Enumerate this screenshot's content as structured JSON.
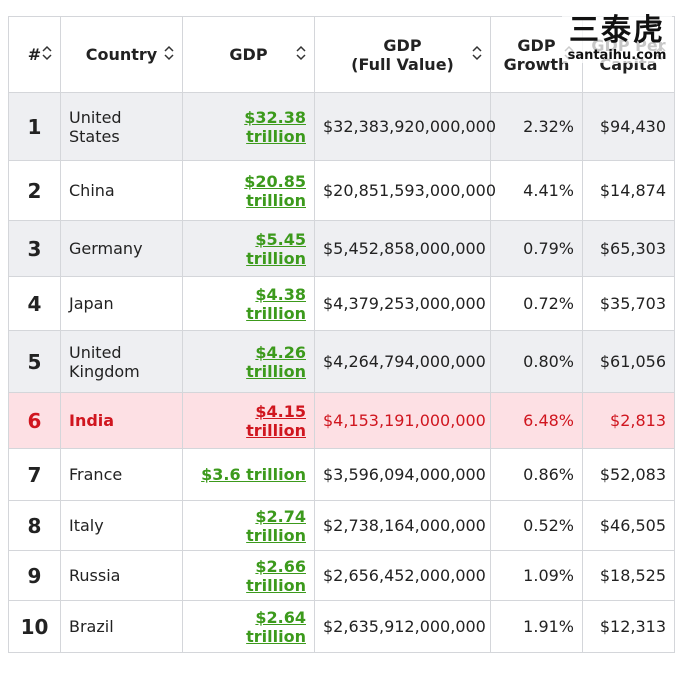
{
  "watermark": {
    "name": "三泰虎",
    "site": "santaihu.com"
  },
  "table": {
    "headers": [
      "#",
      "Country",
      "GDP",
      "GDP\n(Full Value)",
      "GDP\nGrowth",
      "GDP Per\nCapita"
    ],
    "rows": [
      [
        1,
        "United States",
        "$32.38 trillion",
        "$32,383,920,000,000",
        "2.32%",
        "$94,430"
      ],
      [
        2,
        "China",
        "$20.85 trillion",
        "$20,851,593,000,000",
        "4.41%",
        "$14,874"
      ],
      [
        3,
        "Germany",
        "$5.45 trillion",
        "$5,452,858,000,000",
        "0.79%",
        "$65,303"
      ],
      [
        4,
        "Japan",
        "$4.38 trillion",
        "$4,379,253,000,000",
        "0.72%",
        "$35,703"
      ],
      [
        5,
        "United Kingdom",
        "$4.26 trillion",
        "$4,264,794,000,000",
        "0.80%",
        "$61,056"
      ],
      [
        6,
        "India",
        "$4.15 trillion",
        "$4,153,191,000,000",
        "6.48%",
        "$2,813"
      ],
      [
        7,
        "France",
        "$3.6 trillion",
        "$3,596,094,000,000",
        "0.86%",
        "$52,083"
      ],
      [
        8,
        "Italy",
        "$2.74 trillion",
        "$2,738,164,000,000",
        "0.52%",
        "$46,505"
      ],
      [
        9,
        "Russia",
        "$2.66 trillion",
        "$2,656,452,000,000",
        "1.09%",
        "$18,525"
      ],
      [
        10,
        "Brazil",
        "$2.64 trillion",
        "$2,635,912,000,000",
        "1.91%",
        "$12,313"
      ]
    ]
  }
}
